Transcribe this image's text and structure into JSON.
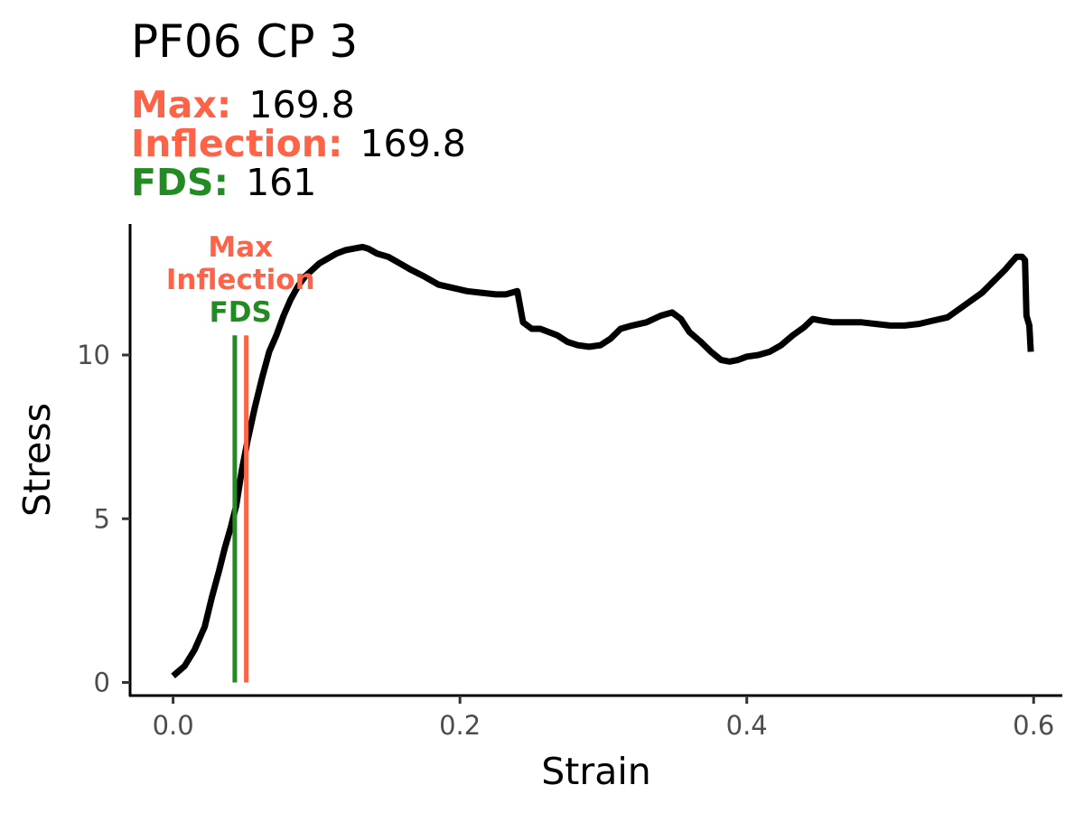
{
  "chart_data": {
    "type": "line",
    "title": "PF06 CP 3",
    "stats": [
      {
        "label": "Max:",
        "value": "169.8",
        "color": "#ff6347"
      },
      {
        "label": "Inflection:",
        "value": "169.8",
        "color": "#ff6347"
      },
      {
        "label": "FDS:",
        "value": "161",
        "color": "#228b22"
      }
    ],
    "xlabel": "Strain",
    "ylabel": "Stress",
    "xlim": [
      -0.03,
      0.62
    ],
    "ylim": [
      -0.4,
      14.0
    ],
    "xticks": [
      0.0,
      0.2,
      0.4,
      0.6
    ],
    "xtick_labels": [
      "0.0",
      "0.2",
      "0.4",
      "0.6"
    ],
    "yticks": [
      0,
      5,
      10
    ],
    "ytick_labels": [
      "0",
      "5",
      "10"
    ],
    "grid": false,
    "markers": [
      {
        "label": "Max",
        "x": 0.051,
        "color": "#ff6347"
      },
      {
        "label": "Inflection",
        "x": 0.051,
        "color": "#ff6347"
      },
      {
        "label": "FDS",
        "x": 0.043,
        "color": "#228b22"
      }
    ],
    "marker_line_top": 10.6,
    "series": [
      {
        "color": "#000000",
        "x": [
          0.0,
          0.008,
          0.015,
          0.022,
          0.027,
          0.032,
          0.036,
          0.04,
          0.044,
          0.048,
          0.052,
          0.057,
          0.062,
          0.067,
          0.072,
          0.077,
          0.082,
          0.087,
          0.092,
          0.097,
          0.102,
          0.108,
          0.114,
          0.12,
          0.126,
          0.132,
          0.136,
          0.142,
          0.15,
          0.158,
          0.166,
          0.175,
          0.185,
          0.195,
          0.205,
          0.215,
          0.225,
          0.232,
          0.24,
          0.244,
          0.25,
          0.256,
          0.262,
          0.268,
          0.275,
          0.282,
          0.29,
          0.298,
          0.305,
          0.312,
          0.32,
          0.33,
          0.34,
          0.348,
          0.354,
          0.36,
          0.368,
          0.375,
          0.382,
          0.388,
          0.394,
          0.4,
          0.408,
          0.416,
          0.424,
          0.432,
          0.44,
          0.446,
          0.452,
          0.46,
          0.47,
          0.48,
          0.49,
          0.5,
          0.51,
          0.52,
          0.53,
          0.54,
          0.548,
          0.556,
          0.564,
          0.572,
          0.58,
          0.584,
          0.588,
          0.592,
          0.594,
          0.595,
          0.597,
          0.598
        ],
        "y": [
          0.2,
          0.5,
          1.0,
          1.7,
          2.6,
          3.4,
          4.1,
          4.7,
          5.4,
          6.5,
          7.4,
          8.4,
          9.3,
          10.1,
          10.6,
          11.2,
          11.7,
          12.1,
          12.4,
          12.6,
          12.8,
          12.95,
          13.1,
          13.2,
          13.25,
          13.3,
          13.25,
          13.1,
          13.0,
          12.8,
          12.6,
          12.4,
          12.15,
          12.05,
          11.95,
          11.9,
          11.85,
          11.85,
          11.95,
          11.0,
          10.8,
          10.8,
          10.7,
          10.6,
          10.4,
          10.3,
          10.25,
          10.3,
          10.5,
          10.8,
          10.9,
          11.0,
          11.2,
          11.3,
          11.1,
          10.7,
          10.4,
          10.1,
          9.85,
          9.8,
          9.85,
          9.95,
          10.0,
          10.1,
          10.3,
          10.6,
          10.85,
          11.1,
          11.05,
          11.0,
          11.0,
          11.0,
          10.95,
          10.9,
          10.9,
          10.95,
          11.05,
          11.15,
          11.4,
          11.65,
          11.9,
          12.25,
          12.6,
          12.8,
          13.0,
          13.0,
          12.9,
          11.2,
          10.9,
          10.1
        ]
      }
    ]
  }
}
